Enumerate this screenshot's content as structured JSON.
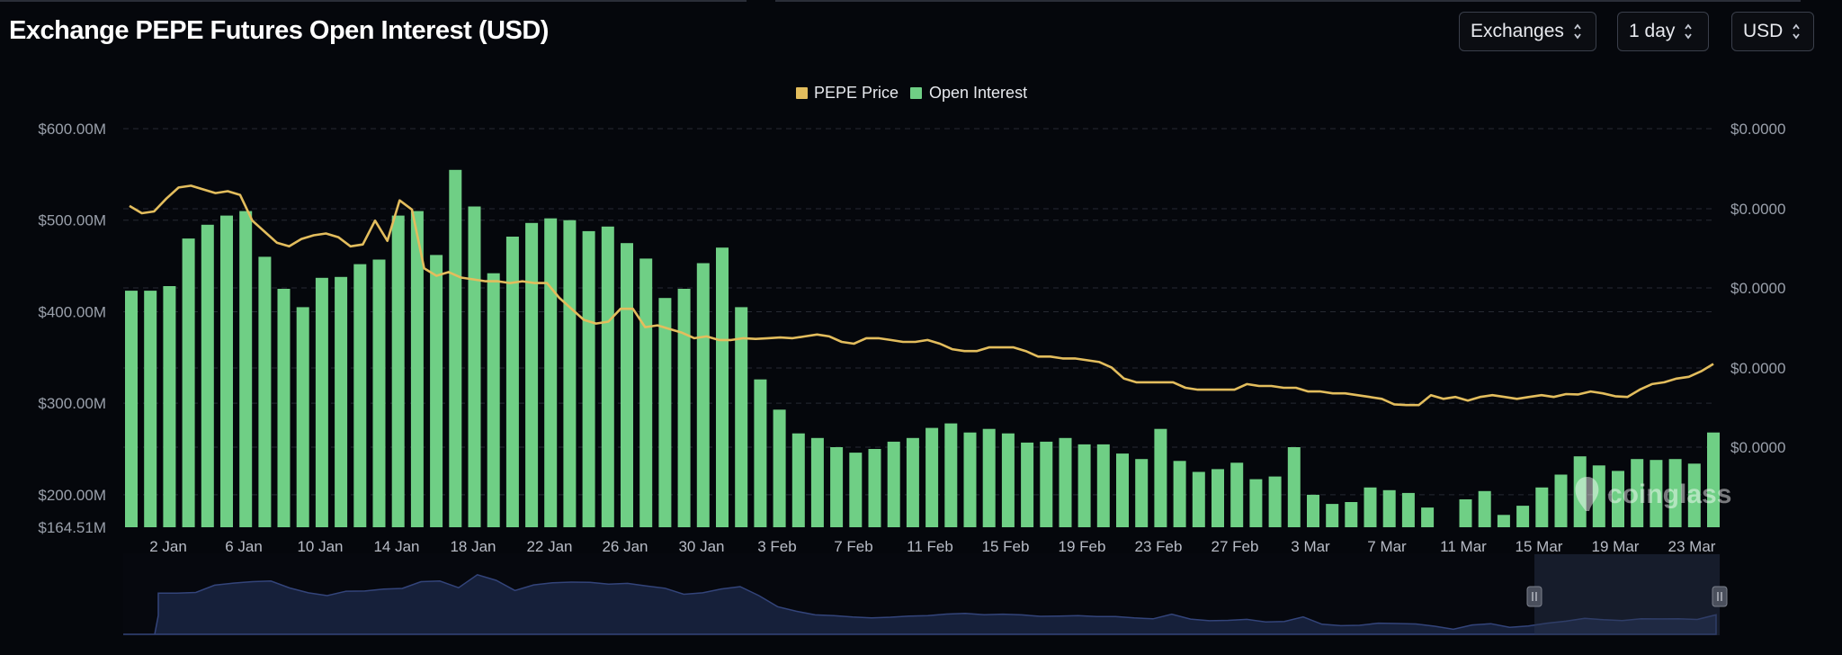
{
  "title": "Exchange PEPE Futures Open Interest (USD)",
  "controls": {
    "exchanges": "Exchanges",
    "interval": "1 day",
    "currency": "USD"
  },
  "colors": {
    "background": "#05070c",
    "bars": "#6fcf85",
    "price_line": "#e3bd5d",
    "navigator_fill": "#16203a",
    "navigator_line": "#33447a"
  },
  "watermark": "coinglass",
  "chart_data": {
    "type": "bar",
    "legend": [
      "PEPE Price",
      "Open Interest"
    ],
    "legend_placement": "top-center",
    "grid": true,
    "x_tick_labels": [
      "2 Jan",
      "6 Jan",
      "10 Jan",
      "14 Jan",
      "18 Jan",
      "22 Jan",
      "26 Jan",
      "30 Jan",
      "3 Feb",
      "7 Feb",
      "11 Feb",
      "15 Feb",
      "19 Feb",
      "23 Feb",
      "27 Feb",
      "3 Mar",
      "7 Mar",
      "11 Mar",
      "15 Mar",
      "19 Mar",
      "23 Mar"
    ],
    "y_left": {
      "tick_labels": [
        "$600.00M",
        "$500.00M",
        "$400.00M",
        "$300.00M",
        "$200.00M",
        "$164.51M"
      ],
      "range": [
        164.51,
        600
      ]
    },
    "y_right": {
      "tick_labels": [
        "$0.0000",
        "$0.0000",
        "$0.0000",
        "$0.0000",
        "$0.0000"
      ]
    },
    "series": [
      {
        "name": "Open Interest",
        "type": "bar",
        "unit": "USD millions",
        "values": [
          423,
          423,
          428,
          480,
          495,
          505,
          510,
          460,
          425,
          405,
          437,
          438,
          452,
          457,
          505,
          510,
          462,
          555,
          515,
          442,
          482,
          497,
          502,
          500,
          488,
          493,
          475,
          458,
          415,
          425,
          453,
          470,
          405,
          326,
          293,
          267,
          262,
          252,
          246,
          250,
          258,
          262,
          273,
          278,
          268,
          272,
          267,
          257,
          258,
          262,
          255,
          255,
          245,
          239,
          272,
          237,
          225,
          228,
          235,
          217,
          220,
          252,
          200,
          190,
          192,
          208,
          205,
          202,
          186,
          164,
          195,
          204,
          178,
          188,
          208,
          222,
          242,
          232,
          226,
          239,
          238,
          239,
          234,
          268
        ]
      },
      {
        "name": "PEPE Price",
        "type": "line",
        "values": [
          0.61,
          0.59,
          0.595,
          0.63,
          0.66,
          0.665,
          0.655,
          0.645,
          0.65,
          0.64,
          0.57,
          0.54,
          0.51,
          0.5,
          0.52,
          0.53,
          0.535,
          0.525,
          0.5,
          0.505,
          0.57,
          0.515,
          0.625,
          0.6,
          0.44,
          0.42,
          0.43,
          0.415,
          0.41,
          0.405,
          0.405,
          0.4,
          0.405,
          0.4,
          0.4,
          0.36,
          0.33,
          0.3,
          0.29,
          0.295,
          0.33,
          0.33,
          0.28,
          0.285,
          0.275,
          0.265,
          0.25,
          0.255,
          0.245,
          0.245,
          0.25,
          0.248,
          0.25,
          0.252,
          0.25,
          0.255,
          0.26,
          0.255,
          0.24,
          0.235,
          0.25,
          0.25,
          0.245,
          0.24,
          0.24,
          0.245,
          0.235,
          0.22,
          0.215,
          0.215,
          0.225,
          0.225,
          0.225,
          0.215,
          0.2,
          0.2,
          0.195,
          0.195,
          0.19,
          0.185,
          0.17,
          0.14,
          0.13,
          0.13,
          0.13,
          0.13,
          0.115,
          0.11,
          0.11,
          0.11,
          0.11,
          0.125,
          0.12,
          0.12,
          0.115,
          0.115,
          0.105,
          0.105,
          0.1,
          0.1,
          0.095,
          0.09,
          0.085,
          0.07,
          0.068,
          0.068,
          0.095,
          0.085,
          0.09,
          0.08,
          0.09,
          0.095,
          0.09,
          0.085,
          0.09,
          0.095,
          0.09,
          0.098,
          0.097,
          0.105,
          0.1,
          0.092,
          0.09,
          0.11,
          0.125,
          0.13,
          0.14,
          0.145,
          0.16,
          0.18
        ]
      }
    ]
  }
}
